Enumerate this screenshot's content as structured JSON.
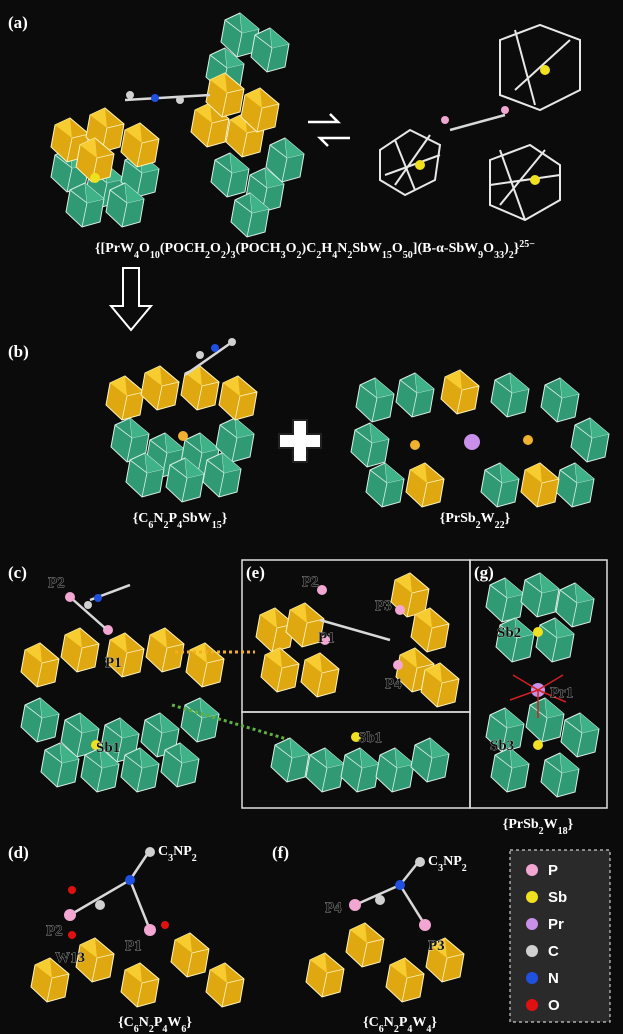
{
  "panels": [
    "(a)",
    "(b)",
    "(c)",
    "(d)",
    "(e)",
    "(f)",
    "(g)"
  ],
  "formulas": [
    {
      "parts": [
        [
          "{[PrW",
          ""
        ],
        [
          "4",
          "sub"
        ],
        [
          "O",
          ""
        ],
        [
          "10",
          "sub"
        ],
        [
          "(POCH",
          ""
        ],
        [
          "2",
          "sub"
        ],
        [
          "O",
          ""
        ],
        [
          "2",
          "sub"
        ],
        [
          ")",
          ""
        ],
        [
          "3",
          "sub"
        ],
        [
          "(POCH",
          ""
        ],
        [
          "3",
          "sub"
        ],
        [
          "O",
          ""
        ],
        [
          "2",
          "sub"
        ],
        [
          ")C",
          ""
        ],
        [
          "2",
          "sub"
        ],
        [
          "H",
          ""
        ],
        [
          "4",
          "sub"
        ],
        [
          "N",
          ""
        ],
        [
          "2",
          "sub"
        ],
        [
          "SbW",
          ""
        ],
        [
          "15",
          "sub"
        ],
        [
          "O",
          ""
        ],
        [
          "50",
          "sub"
        ],
        [
          "](B-α-SbW",
          ""
        ],
        [
          "9",
          "sub"
        ],
        [
          "O",
          ""
        ],
        [
          "33",
          "sub"
        ],
        [
          ")",
          ""
        ],
        [
          "2",
          "sub"
        ],
        [
          "}",
          ""
        ],
        [
          "25−",
          "sup"
        ]
      ]
    },
    {
      "parts": [
        [
          "{C",
          ""
        ],
        [
          "6",
          "sub"
        ],
        [
          "N",
          ""
        ],
        [
          "2",
          "sub"
        ],
        [
          "P",
          ""
        ],
        [
          "4",
          "sub"
        ],
        [
          "SbW",
          ""
        ],
        [
          "15",
          "sub"
        ],
        [
          "}",
          ""
        ]
      ]
    },
    {
      "parts": [
        [
          "{PrSb",
          ""
        ],
        [
          "2",
          "sub"
        ],
        [
          "W",
          ""
        ],
        [
          "22",
          "sub"
        ],
        [
          "}",
          ""
        ]
      ]
    },
    {
      "parts": [
        [
          "{PrSb",
          ""
        ],
        [
          "2",
          "sub"
        ],
        [
          "W",
          ""
        ],
        [
          "18",
          "sub"
        ],
        [
          "}",
          ""
        ]
      ]
    },
    {
      "parts": [
        [
          "{C",
          ""
        ],
        [
          "6",
          "sub"
        ],
        [
          "N",
          ""
        ],
        [
          "2",
          "sub"
        ],
        [
          "P",
          ""
        ],
        [
          "4",
          "sub"
        ],
        [
          "W",
          ""
        ],
        [
          "6",
          "sub"
        ],
        [
          "}",
          ""
        ]
      ]
    },
    {
      "parts": [
        [
          "{C",
          ""
        ],
        [
          "6",
          "sub"
        ],
        [
          "N",
          ""
        ],
        [
          "2",
          "sub"
        ],
        [
          "P",
          ""
        ],
        [
          "4",
          "sub"
        ],
        [
          "W",
          ""
        ],
        [
          "4",
          "sub"
        ],
        [
          "}",
          ""
        ]
      ]
    },
    {
      "parts": [
        [
          "C",
          ""
        ],
        [
          "3",
          "sub"
        ],
        [
          "NP",
          ""
        ],
        [
          "2",
          "sub"
        ]
      ]
    },
    {
      "parts": [
        [
          "C",
          ""
        ],
        [
          "3",
          "sub"
        ],
        [
          "NP",
          ""
        ],
        [
          "2",
          "sub"
        ]
      ]
    }
  ],
  "atom_labels": [
    "P2",
    "P1",
    "Sb1",
    "P2",
    "P1",
    "P3",
    "P4",
    "Sb1",
    "Sb2",
    "Pr1",
    "Sb3",
    "P2",
    "W13",
    "P1",
    "P4",
    "P3"
  ],
  "legend": [
    {
      "symbol": "P",
      "color": "#f2a6d2"
    },
    {
      "symbol": "Sb",
      "color": "#f0e020"
    },
    {
      "symbol": "Pr",
      "color": "#c890e8"
    },
    {
      "symbol": "C",
      "color": "#d0d0d0"
    },
    {
      "symbol": "N",
      "color": "#2050e0"
    },
    {
      "symbol": "O",
      "color": "#e01010"
    }
  ]
}
